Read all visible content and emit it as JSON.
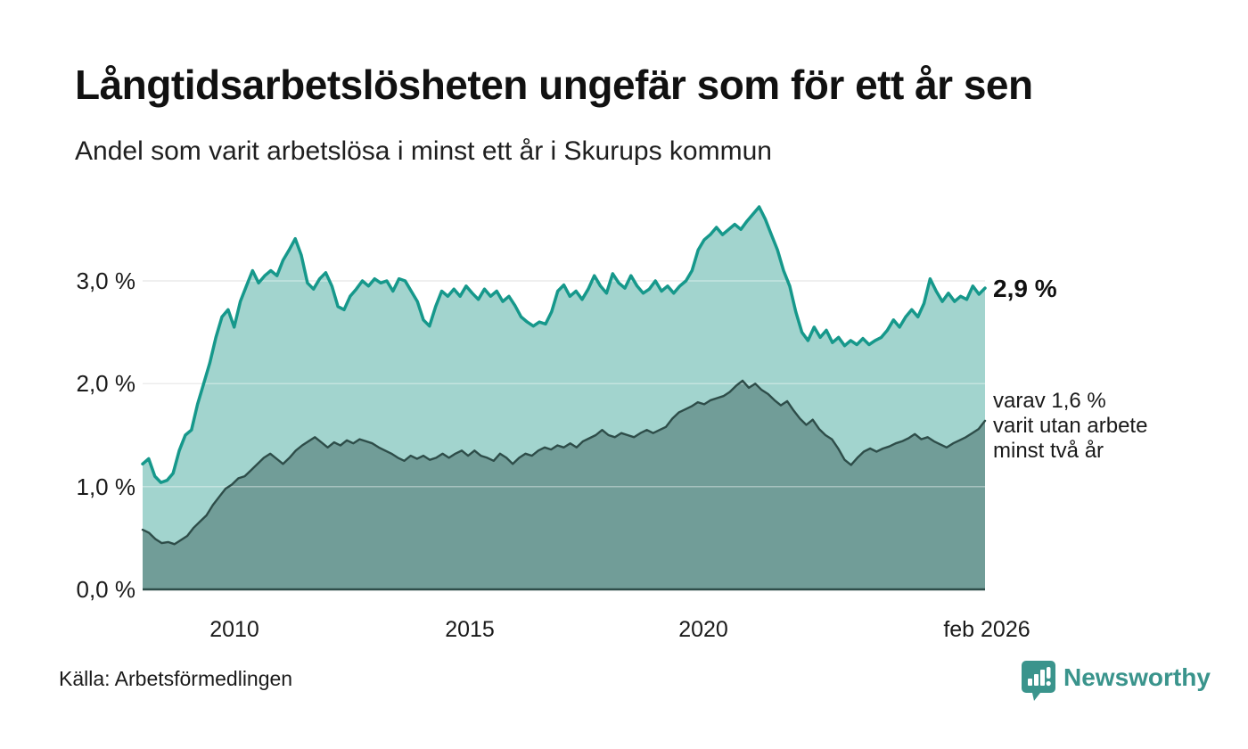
{
  "header": {
    "title": "Långtidsarbetslösheten ungefär som för ett år sen",
    "subtitle": "Andel som varit arbetslösa i minst ett år i Skurups kommun"
  },
  "footer": {
    "source": "Källa: Arbetsförmedlingen",
    "brand": "Newsworthy",
    "brand_color": "#3a948c",
    "logo_icon": "speech-bubble-bar-chart-icon"
  },
  "chart_data": {
    "type": "area",
    "title": "Långtidsarbetslösheten ungefär som för ett år sen",
    "subtitle": "Andel som varit arbetslösa i minst ett år i Skurups kommun",
    "x_range": [
      "feb 2008",
      "feb 2026"
    ],
    "ylim": [
      0,
      3.9
    ],
    "unit": "%",
    "grid": "horizontal",
    "y_tick_labels": [
      "0,0 %",
      "1,0 %",
      "2,0 %",
      "3,0 %"
    ],
    "y_tick_values": [
      0,
      1,
      2,
      3
    ],
    "x_tick_labels": [
      "2010",
      "2015",
      "2020",
      "feb 2026"
    ],
    "colors": {
      "line_total": "#16988b",
      "fill_total": "#a2d4ce",
      "line_two_years": "#2e4d49",
      "fill_two_years": "#719d98",
      "gridline": "#e0e0e0",
      "baseline": "#2e4d49"
    },
    "end_labels": {
      "total": "2,9 %",
      "annotation_line1": "varav 1,6 %",
      "annotation_line2": "varit utan arbete",
      "annotation_line3": "minst två år"
    },
    "series": [
      {
        "name": "arbetslosa_minst_ett_ar",
        "end_value_label": "2,9 %",
        "end_value": 2.9,
        "color": "#16988b",
        "fill": "#a2d4ce",
        "values": [
          1.22,
          1.27,
          1.1,
          1.04,
          1.06,
          1.13,
          1.35,
          1.5,
          1.55,
          1.8,
          2.0,
          2.2,
          2.45,
          2.65,
          2.72,
          2.55,
          2.8,
          2.95,
          3.1,
          2.98,
          3.05,
          3.1,
          3.05,
          3.2,
          3.3,
          3.41,
          3.25,
          2.98,
          2.92,
          3.02,
          3.08,
          2.95,
          2.75,
          2.72,
          2.85,
          2.92,
          3.0,
          2.95,
          3.02,
          2.98,
          3.0,
          2.9,
          3.02,
          3.0,
          2.9,
          2.8,
          2.62,
          2.56,
          2.75,
          2.9,
          2.85,
          2.92,
          2.85,
          2.95,
          2.88,
          2.82,
          2.92,
          2.85,
          2.9,
          2.8,
          2.85,
          2.76,
          2.65,
          2.6,
          2.56,
          2.6,
          2.58,
          2.7,
          2.9,
          2.96,
          2.85,
          2.9,
          2.82,
          2.92,
          3.05,
          2.95,
          2.88,
          3.07,
          2.98,
          2.93,
          3.05,
          2.95,
          2.88,
          2.92,
          3.0,
          2.9,
          2.95,
          2.88,
          2.95,
          3.0,
          3.1,
          3.3,
          3.4,
          3.45,
          3.52,
          3.45,
          3.5,
          3.55,
          3.5,
          3.58,
          3.65,
          3.72,
          3.6,
          3.45,
          3.3,
          3.1,
          2.95,
          2.7,
          2.5,
          2.42,
          2.55,
          2.45,
          2.52,
          2.4,
          2.45,
          2.37,
          2.42,
          2.38,
          2.44,
          2.38,
          2.42,
          2.45,
          2.52,
          2.62,
          2.55,
          2.65,
          2.72,
          2.65,
          2.78,
          3.02,
          2.9,
          2.8,
          2.88,
          2.8,
          2.85,
          2.82,
          2.95,
          2.87,
          2.93
        ]
      },
      {
        "name": "arbetslosa_minst_tva_ar",
        "end_value_label": "varav 1,6 % varit utan arbete minst två år",
        "end_value": 1.6,
        "color": "#2e4d49",
        "fill": "#719d98",
        "values": [
          0.58,
          0.55,
          0.49,
          0.45,
          0.46,
          0.44,
          0.48,
          0.52,
          0.6,
          0.66,
          0.72,
          0.82,
          0.9,
          0.98,
          1.02,
          1.08,
          1.1,
          1.16,
          1.22,
          1.28,
          1.32,
          1.27,
          1.22,
          1.28,
          1.35,
          1.4,
          1.44,
          1.48,
          1.43,
          1.38,
          1.43,
          1.4,
          1.45,
          1.42,
          1.46,
          1.44,
          1.42,
          1.38,
          1.35,
          1.32,
          1.28,
          1.25,
          1.3,
          1.27,
          1.3,
          1.26,
          1.28,
          1.32,
          1.28,
          1.32,
          1.35,
          1.3,
          1.35,
          1.3,
          1.28,
          1.25,
          1.32,
          1.28,
          1.22,
          1.28,
          1.32,
          1.3,
          1.35,
          1.38,
          1.36,
          1.4,
          1.38,
          1.42,
          1.38,
          1.44,
          1.47,
          1.5,
          1.55,
          1.5,
          1.48,
          1.52,
          1.5,
          1.48,
          1.52,
          1.55,
          1.52,
          1.55,
          1.58,
          1.66,
          1.72,
          1.75,
          1.78,
          1.82,
          1.8,
          1.84,
          1.86,
          1.88,
          1.92,
          1.98,
          2.03,
          1.96,
          2.0,
          1.94,
          1.9,
          1.84,
          1.79,
          1.83,
          1.74,
          1.66,
          1.6,
          1.65,
          1.56,
          1.5,
          1.46,
          1.37,
          1.26,
          1.21,
          1.28,
          1.34,
          1.37,
          1.34,
          1.37,
          1.39,
          1.42,
          1.44,
          1.47,
          1.51,
          1.46,
          1.48,
          1.44,
          1.41,
          1.38,
          1.42,
          1.45,
          1.48,
          1.52,
          1.56,
          1.64
        ]
      }
    ]
  }
}
